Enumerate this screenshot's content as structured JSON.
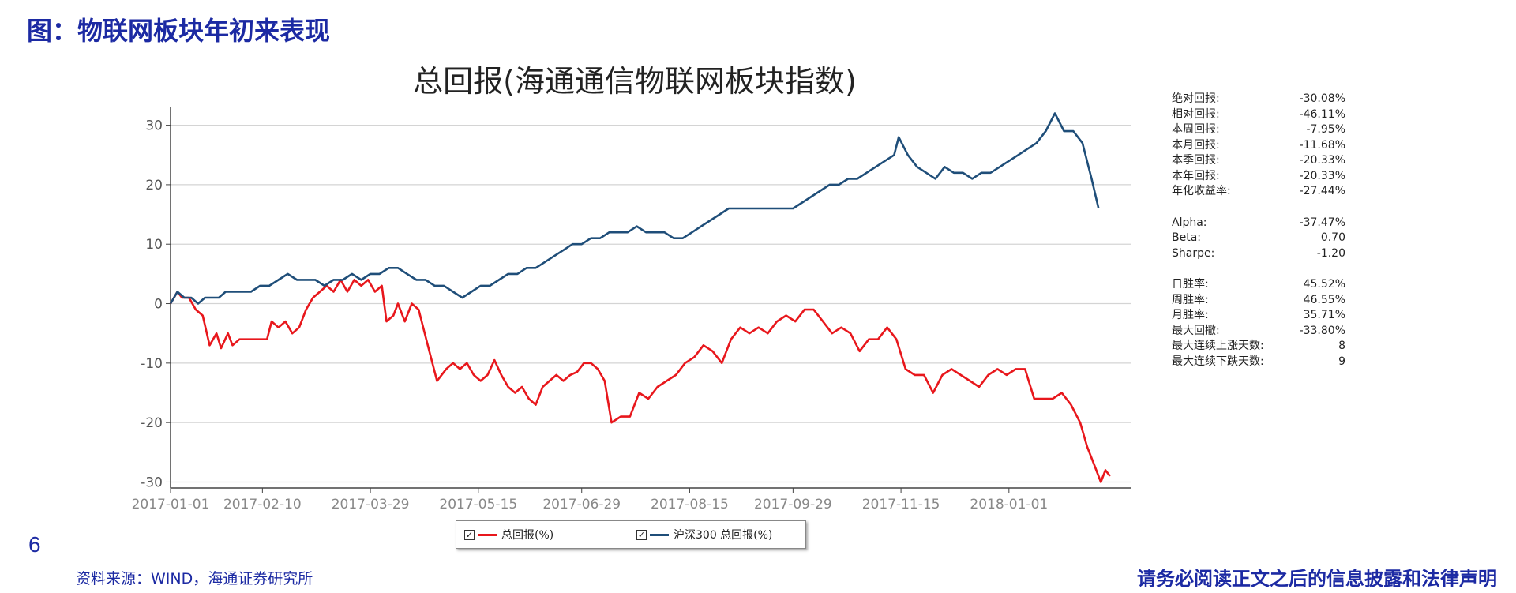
{
  "page": {
    "header": "图：物联网板块年初来表现",
    "page_number": "6",
    "source": "资料来源：WIND，海通证券研究所",
    "disclaimer": "请务必阅读正文之后的信息披露和法律声明"
  },
  "stats": {
    "group1": [
      {
        "label": "绝对回报:",
        "value": "-30.08%"
      },
      {
        "label": "相对回报:",
        "value": "-46.11%"
      },
      {
        "label": "本周回报:",
        "value": "-7.95%"
      },
      {
        "label": "本月回报:",
        "value": "-11.68%"
      },
      {
        "label": "本季回报:",
        "value": "-20.33%"
      },
      {
        "label": "本年回报:",
        "value": "-20.33%"
      },
      {
        "label": "年化收益率:",
        "value": "-27.44%"
      }
    ],
    "group2": [
      {
        "label": "Alpha:",
        "value": "-37.47%"
      },
      {
        "label": "Beta:",
        "value": "0.70"
      },
      {
        "label": "Sharpe:",
        "value": "-1.20"
      }
    ],
    "group3": [
      {
        "label": "日胜率:",
        "value": "45.52%"
      },
      {
        "label": "周胜率:",
        "value": "46.55%"
      },
      {
        "label": "月胜率:",
        "value": "35.71%"
      },
      {
        "label": "最大回撤:",
        "value": "-33.80%"
      },
      {
        "label": "最大连续上涨天数:",
        "value": "8"
      },
      {
        "label": "最大连续下跌天数:",
        "value": "9"
      }
    ]
  },
  "chart_data": {
    "type": "line",
    "title": "总回报(海通通信物联网板块指数)",
    "xlabel": "",
    "ylabel": "",
    "x_ticks": [
      "2017-01-01",
      "2017-02-10",
      "2017-03-29",
      "2017-05-15",
      "2017-06-29",
      "2017-08-15",
      "2017-09-29",
      "2017-11-15",
      "2018-01-01"
    ],
    "y_ticks": [
      30,
      20,
      10,
      0,
      -10,
      -20,
      -30
    ],
    "ylim": [
      -31,
      33
    ],
    "xlim": [
      "2017-01-01",
      "2018-02-23"
    ],
    "grid": "horizontal",
    "legend_position": "bottom",
    "series": [
      {
        "name": "总回报(%)",
        "color": "#e8171c",
        "points": [
          [
            "2017-01-01",
            0
          ],
          [
            "2017-01-04",
            2
          ],
          [
            "2017-01-06",
            1
          ],
          [
            "2017-01-09",
            1
          ],
          [
            "2017-01-12",
            -1
          ],
          [
            "2017-01-15",
            -2
          ],
          [
            "2017-01-18",
            -7
          ],
          [
            "2017-01-21",
            -5
          ],
          [
            "2017-01-23",
            -7.5
          ],
          [
            "2017-01-26",
            -5
          ],
          [
            "2017-01-28",
            -7
          ],
          [
            "2017-01-31",
            -6
          ],
          [
            "2017-02-04",
            -6
          ],
          [
            "2017-02-08",
            -6
          ],
          [
            "2017-02-12",
            -6
          ],
          [
            "2017-02-14",
            -3
          ],
          [
            "2017-02-17",
            -4
          ],
          [
            "2017-02-20",
            -3
          ],
          [
            "2017-02-23",
            -5
          ],
          [
            "2017-02-26",
            -4
          ],
          [
            "2017-03-01",
            -1
          ],
          [
            "2017-03-04",
            1
          ],
          [
            "2017-03-07",
            2
          ],
          [
            "2017-03-10",
            3
          ],
          [
            "2017-03-13",
            2
          ],
          [
            "2017-03-16",
            4
          ],
          [
            "2017-03-19",
            2
          ],
          [
            "2017-03-22",
            4
          ],
          [
            "2017-03-25",
            3
          ],
          [
            "2017-03-28",
            4
          ],
          [
            "2017-03-31",
            2
          ],
          [
            "2017-04-03",
            3
          ],
          [
            "2017-04-05",
            -3
          ],
          [
            "2017-04-08",
            -2
          ],
          [
            "2017-04-10",
            0
          ],
          [
            "2017-04-13",
            -3
          ],
          [
            "2017-04-16",
            0
          ],
          [
            "2017-04-19",
            -1
          ],
          [
            "2017-04-23",
            -7
          ],
          [
            "2017-04-27",
            -13
          ],
          [
            "2017-05-01",
            -11
          ],
          [
            "2017-05-04",
            -10
          ],
          [
            "2017-05-07",
            -11
          ],
          [
            "2017-05-10",
            -10
          ],
          [
            "2017-05-13",
            -12
          ],
          [
            "2017-05-16",
            -13
          ],
          [
            "2017-05-19",
            -12
          ],
          [
            "2017-05-22",
            -9.5
          ],
          [
            "2017-05-25",
            -12
          ],
          [
            "2017-05-28",
            -14
          ],
          [
            "2017-05-31",
            -15
          ],
          [
            "2017-06-03",
            -14
          ],
          [
            "2017-06-06",
            -16
          ],
          [
            "2017-06-09",
            -17
          ],
          [
            "2017-06-12",
            -14
          ],
          [
            "2017-06-15",
            -13
          ],
          [
            "2017-06-18",
            -12
          ],
          [
            "2017-06-21",
            -13
          ],
          [
            "2017-06-24",
            -12
          ],
          [
            "2017-06-27",
            -11.5
          ],
          [
            "2017-06-30",
            -10
          ],
          [
            "2017-07-03",
            -10
          ],
          [
            "2017-07-06",
            -11
          ],
          [
            "2017-07-09",
            -13
          ],
          [
            "2017-07-12",
            -20
          ],
          [
            "2017-07-16",
            -19
          ],
          [
            "2017-07-20",
            -19
          ],
          [
            "2017-07-24",
            -15
          ],
          [
            "2017-07-28",
            -16
          ],
          [
            "2017-08-01",
            -14
          ],
          [
            "2017-08-05",
            -13
          ],
          [
            "2017-08-09",
            -12
          ],
          [
            "2017-08-13",
            -10
          ],
          [
            "2017-08-17",
            -9
          ],
          [
            "2017-08-21",
            -7
          ],
          [
            "2017-08-25",
            -8
          ],
          [
            "2017-08-29",
            -10
          ],
          [
            "2017-09-02",
            -6
          ],
          [
            "2017-09-06",
            -4
          ],
          [
            "2017-09-10",
            -5
          ],
          [
            "2017-09-14",
            -4
          ],
          [
            "2017-09-18",
            -5
          ],
          [
            "2017-09-22",
            -3
          ],
          [
            "2017-09-26",
            -2
          ],
          [
            "2017-09-30",
            -3
          ],
          [
            "2017-10-04",
            -1
          ],
          [
            "2017-10-08",
            -1
          ],
          [
            "2017-10-12",
            -3
          ],
          [
            "2017-10-16",
            -5
          ],
          [
            "2017-10-20",
            -4
          ],
          [
            "2017-10-24",
            -5
          ],
          [
            "2017-10-28",
            -8
          ],
          [
            "2017-11-01",
            -6
          ],
          [
            "2017-11-05",
            -6
          ],
          [
            "2017-11-09",
            -4
          ],
          [
            "2017-11-13",
            -6
          ],
          [
            "2017-11-17",
            -11
          ],
          [
            "2017-11-21",
            -12
          ],
          [
            "2017-11-25",
            -12
          ],
          [
            "2017-11-29",
            -15
          ],
          [
            "2017-12-03",
            -12
          ],
          [
            "2017-12-07",
            -11
          ],
          [
            "2017-12-11",
            -12
          ],
          [
            "2017-12-15",
            -13
          ],
          [
            "2017-12-19",
            -14
          ],
          [
            "2017-12-23",
            -12
          ],
          [
            "2017-12-27",
            -11
          ],
          [
            "2017-12-31",
            -12
          ],
          [
            "2018-01-04",
            -11
          ],
          [
            "2018-01-08",
            -11
          ],
          [
            "2018-01-12",
            -16
          ],
          [
            "2018-01-16",
            -16
          ],
          [
            "2018-01-20",
            -16
          ],
          [
            "2018-01-24",
            -15
          ],
          [
            "2018-01-28",
            -17
          ],
          [
            "2018-02-01",
            -20
          ],
          [
            "2018-02-04",
            -24
          ],
          [
            "2018-02-07",
            -27
          ],
          [
            "2018-02-10",
            -30
          ],
          [
            "2018-02-12",
            -28
          ],
          [
            "2018-02-14",
            -29
          ]
        ]
      },
      {
        "name": "沪深300 总回报(%)",
        "color": "#1f4e79",
        "points": [
          [
            "2017-01-01",
            0
          ],
          [
            "2017-01-04",
            2
          ],
          [
            "2017-01-07",
            1
          ],
          [
            "2017-01-10",
            1
          ],
          [
            "2017-01-13",
            0
          ],
          [
            "2017-01-16",
            1
          ],
          [
            "2017-01-19",
            1
          ],
          [
            "2017-01-22",
            1
          ],
          [
            "2017-01-25",
            2
          ],
          [
            "2017-01-28",
            2
          ],
          [
            "2017-02-01",
            2
          ],
          [
            "2017-02-05",
            2
          ],
          [
            "2017-02-09",
            3
          ],
          [
            "2017-02-13",
            3
          ],
          [
            "2017-02-17",
            4
          ],
          [
            "2017-02-21",
            5
          ],
          [
            "2017-02-25",
            4
          ],
          [
            "2017-03-01",
            4
          ],
          [
            "2017-03-05",
            4
          ],
          [
            "2017-03-09",
            3
          ],
          [
            "2017-03-13",
            4
          ],
          [
            "2017-03-17",
            4
          ],
          [
            "2017-03-21",
            5
          ],
          [
            "2017-03-25",
            4
          ],
          [
            "2017-03-29",
            5
          ],
          [
            "2017-04-02",
            5
          ],
          [
            "2017-04-06",
            6
          ],
          [
            "2017-04-10",
            6
          ],
          [
            "2017-04-14",
            5
          ],
          [
            "2017-04-18",
            4
          ],
          [
            "2017-04-22",
            4
          ],
          [
            "2017-04-26",
            3
          ],
          [
            "2017-04-30",
            3
          ],
          [
            "2017-05-04",
            2
          ],
          [
            "2017-05-08",
            1
          ],
          [
            "2017-05-12",
            2
          ],
          [
            "2017-05-16",
            3
          ],
          [
            "2017-05-20",
            3
          ],
          [
            "2017-05-24",
            4
          ],
          [
            "2017-05-28",
            5
          ],
          [
            "2017-06-01",
            5
          ],
          [
            "2017-06-05",
            6
          ],
          [
            "2017-06-09",
            6
          ],
          [
            "2017-06-13",
            7
          ],
          [
            "2017-06-17",
            8
          ],
          [
            "2017-06-21",
            9
          ],
          [
            "2017-06-25",
            10
          ],
          [
            "2017-06-29",
            10
          ],
          [
            "2017-07-03",
            11
          ],
          [
            "2017-07-07",
            11
          ],
          [
            "2017-07-11",
            12
          ],
          [
            "2017-07-15",
            12
          ],
          [
            "2017-07-19",
            12
          ],
          [
            "2017-07-23",
            13
          ],
          [
            "2017-07-27",
            12
          ],
          [
            "2017-07-31",
            12
          ],
          [
            "2017-08-04",
            12
          ],
          [
            "2017-08-08",
            11
          ],
          [
            "2017-08-12",
            11
          ],
          [
            "2017-08-16",
            12
          ],
          [
            "2017-08-20",
            13
          ],
          [
            "2017-08-24",
            14
          ],
          [
            "2017-08-28",
            15
          ],
          [
            "2017-09-01",
            16
          ],
          [
            "2017-09-05",
            16
          ],
          [
            "2017-09-09",
            16
          ],
          [
            "2017-09-13",
            16
          ],
          [
            "2017-09-17",
            16
          ],
          [
            "2017-09-21",
            16
          ],
          [
            "2017-09-25",
            16
          ],
          [
            "2017-09-29",
            16
          ],
          [
            "2017-10-03",
            17
          ],
          [
            "2017-10-07",
            18
          ],
          [
            "2017-10-11",
            19
          ],
          [
            "2017-10-15",
            20
          ],
          [
            "2017-10-19",
            20
          ],
          [
            "2017-10-23",
            21
          ],
          [
            "2017-10-27",
            21
          ],
          [
            "2017-10-31",
            22
          ],
          [
            "2017-11-04",
            23
          ],
          [
            "2017-11-08",
            24
          ],
          [
            "2017-11-12",
            25
          ],
          [
            "2017-11-14",
            28
          ],
          [
            "2017-11-18",
            25
          ],
          [
            "2017-11-22",
            23
          ],
          [
            "2017-11-26",
            22
          ],
          [
            "2017-11-30",
            21
          ],
          [
            "2017-12-04",
            23
          ],
          [
            "2017-12-08",
            22
          ],
          [
            "2017-12-12",
            22
          ],
          [
            "2017-12-16",
            21
          ],
          [
            "2017-12-20",
            22
          ],
          [
            "2017-12-24",
            22
          ],
          [
            "2017-12-28",
            23
          ],
          [
            "2018-01-01",
            24
          ],
          [
            "2018-01-05",
            25
          ],
          [
            "2018-01-09",
            26
          ],
          [
            "2018-01-13",
            27
          ],
          [
            "2018-01-17",
            29
          ],
          [
            "2018-01-21",
            32
          ],
          [
            "2018-01-25",
            29
          ],
          [
            "2018-01-29",
            29
          ],
          [
            "2018-02-02",
            27
          ],
          [
            "2018-02-06",
            21
          ],
          [
            "2018-02-09",
            16
          ]
        ]
      }
    ]
  }
}
